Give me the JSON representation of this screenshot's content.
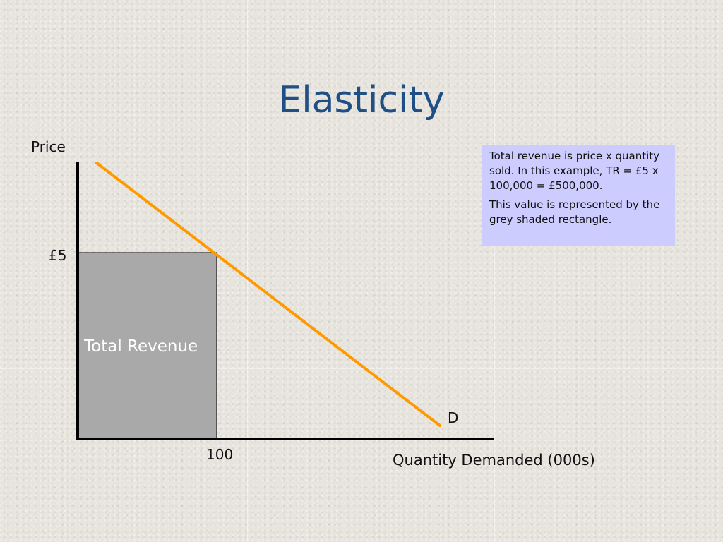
{
  "slide": {
    "title": "Elasticity"
  },
  "info_box": {
    "paragraph_1": "Total revenue is price x quantity sold. In this example, TR = £5 x 100,000 = £500,000.",
    "paragraph_2": "This value is represented by the grey shaded rectangle."
  },
  "diagram": {
    "y_axis_label": "Price",
    "x_axis_label": "Quantity Demanded (000s)",
    "price_tick": "£5",
    "quantity_tick": "100",
    "revenue_label": "Total Revenue",
    "curve_label": "D",
    "colors": {
      "demand_line": "#ff9900",
      "revenue_fill": "#a9a9a9",
      "axes": "#000000",
      "title": "#1f4f85",
      "info_box": "#ccccff"
    }
  }
}
